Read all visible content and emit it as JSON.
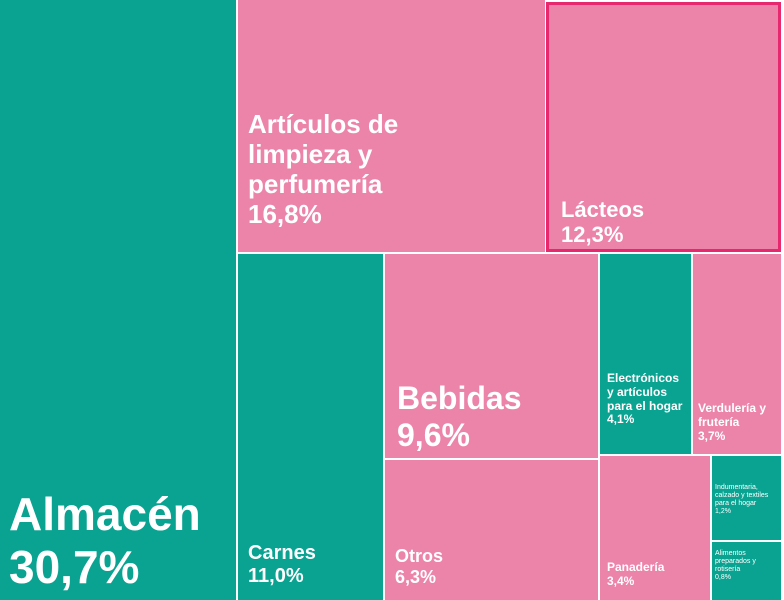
{
  "chart_data": {
    "type": "treemap",
    "title": "",
    "colors": {
      "teal": "#0aa392",
      "pink": "#ec84aa",
      "highlight_border": "#e8286e",
      "divider": "#ffffff"
    },
    "items": [
      {
        "name": "Almacén",
        "value": 30.7,
        "label": "30,7%",
        "color": "teal"
      },
      {
        "name": "Artículos de limpieza y perfumería",
        "value": 16.8,
        "label": "16,8%",
        "color": "pink"
      },
      {
        "name": "Lácteos",
        "value": 12.3,
        "label": "12,3%",
        "color": "pink",
        "highlighted": true
      },
      {
        "name": "Carnes",
        "value": 11.0,
        "label": "11,0%",
        "color": "teal"
      },
      {
        "name": "Bebidas",
        "value": 9.6,
        "label": "9,6%",
        "color": "pink"
      },
      {
        "name": "Otros",
        "value": 6.3,
        "label": "6,3%",
        "color": "pink"
      },
      {
        "name": "Electrónicos y artículos para el hogar",
        "value": 4.1,
        "label": "4,1%",
        "color": "teal"
      },
      {
        "name": "Verdulería y frutería",
        "value": 3.7,
        "label": "3,7%",
        "color": "pink"
      },
      {
        "name": "Panadería",
        "value": 3.4,
        "label": "3,4%",
        "color": "pink"
      },
      {
        "name": "Indumentaria, calzado y textiles para el hogar",
        "value": 1.2,
        "label": "1,2%",
        "color": "teal"
      },
      {
        "name": "Alimentos preparados y rotisería",
        "value": 0.8,
        "label": "0,8%",
        "color": "teal"
      }
    ]
  }
}
